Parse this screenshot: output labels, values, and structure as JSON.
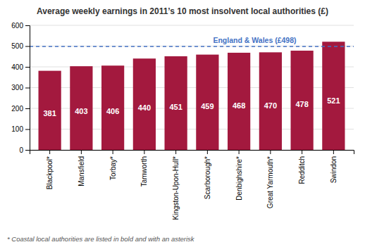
{
  "chart_data": {
    "type": "bar",
    "title": "Average weekly earnings in 2011’s 10 most insolvent local authorities (£)",
    "categories": [
      "Blackpool*",
      "Mansfield",
      "Torbay*",
      "Tamworth",
      "Kingston-Upon-Hull*",
      "Scarborough*",
      "Denbighshire*",
      "Great Yarmouth*",
      "Redditch",
      "Swindon"
    ],
    "values": [
      381,
      403,
      406,
      440,
      451,
      459,
      468,
      470,
      478,
      521
    ],
    "color": "#a3193e",
    "ylim": [
      0,
      600
    ],
    "yticks": [
      0,
      100,
      200,
      300,
      400,
      500,
      600
    ],
    "grid": true,
    "data_labels": true,
    "annotations": [
      {
        "text": "England & Wales (£498)",
        "y": 498,
        "color": "#4472c4",
        "line_style": "dashed"
      }
    ],
    "footnote": "* Coastal local authorities are listed in bold and with an asterisk"
  }
}
